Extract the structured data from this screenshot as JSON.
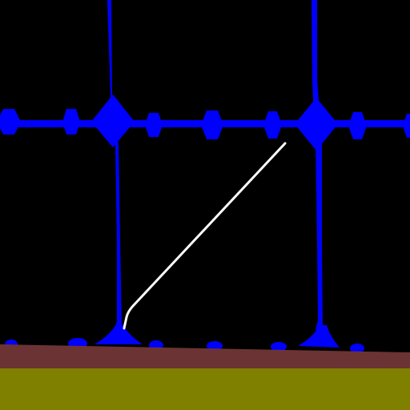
{
  "scene": {
    "background_color": "#000000",
    "structure_color": "#0000FF",
    "rope_color": "#FFFFFF",
    "platform_color": "#6B3333",
    "ground_color": "#7F7F00"
  }
}
